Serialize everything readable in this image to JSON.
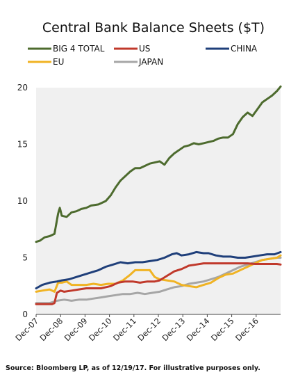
{
  "chart_data": {
    "type": "line",
    "title": "Central Bank Balance Sheets ($T)",
    "xlabel": "",
    "ylabel": "",
    "x_start": "Dec-07",
    "x_end": "Dec-17",
    "x_tick_labels": [
      "Dec-07",
      "Dec-08",
      "Dec-09",
      "Dec-10",
      "Dec-11",
      "Dec-12",
      "Dec-13",
      "Dec-14",
      "Dec-15",
      "Dec-16"
    ],
    "ylim": [
      0,
      20
    ],
    "y_ticks": [
      0,
      5,
      10,
      15,
      20
    ],
    "grid": "dense vertical hatching in plot area",
    "legend_placement": "top",
    "series": [
      {
        "name": "BIG 4 TOTAL",
        "color": "#4d6b2e",
        "points": [
          [
            2007.95,
            6.4
          ],
          [
            2008.1,
            6.5
          ],
          [
            2008.3,
            6.8
          ],
          [
            2008.5,
            6.9
          ],
          [
            2008.7,
            7.1
          ],
          [
            2008.85,
            8.9
          ],
          [
            2008.92,
            9.4
          ],
          [
            2009.0,
            8.7
          ],
          [
            2009.2,
            8.6
          ],
          [
            2009.4,
            9.0
          ],
          [
            2009.6,
            9.1
          ],
          [
            2009.8,
            9.3
          ],
          [
            2010.0,
            9.4
          ],
          [
            2010.2,
            9.6
          ],
          [
            2010.5,
            9.7
          ],
          [
            2010.8,
            10.0
          ],
          [
            2011.0,
            10.5
          ],
          [
            2011.2,
            11.2
          ],
          [
            2011.4,
            11.8
          ],
          [
            2011.6,
            12.2
          ],
          [
            2011.8,
            12.6
          ],
          [
            2012.0,
            12.9
          ],
          [
            2012.2,
            12.9
          ],
          [
            2012.4,
            13.1
          ],
          [
            2012.6,
            13.3
          ],
          [
            2012.8,
            13.4
          ],
          [
            2013.0,
            13.5
          ],
          [
            2013.2,
            13.2
          ],
          [
            2013.4,
            13.8
          ],
          [
            2013.6,
            14.2
          ],
          [
            2013.8,
            14.5
          ],
          [
            2014.0,
            14.8
          ],
          [
            2014.2,
            14.9
          ],
          [
            2014.4,
            15.1
          ],
          [
            2014.6,
            15.0
          ],
          [
            2014.8,
            15.1
          ],
          [
            2015.0,
            15.2
          ],
          [
            2015.2,
            15.3
          ],
          [
            2015.4,
            15.5
          ],
          [
            2015.6,
            15.6
          ],
          [
            2015.8,
            15.6
          ],
          [
            2016.0,
            15.9
          ],
          [
            2016.2,
            16.8
          ],
          [
            2016.4,
            17.4
          ],
          [
            2016.6,
            17.8
          ],
          [
            2016.8,
            17.5
          ],
          [
            2017.0,
            18.1
          ],
          [
            2017.2,
            18.7
          ],
          [
            2017.4,
            19.0
          ],
          [
            2017.6,
            19.3
          ],
          [
            2017.8,
            19.7
          ],
          [
            2017.95,
            20.1
          ]
        ]
      },
      {
        "name": "US",
        "color": "#c0392b",
        "points": [
          [
            2007.95,
            0.9
          ],
          [
            2008.3,
            0.9
          ],
          [
            2008.6,
            0.9
          ],
          [
            2008.7,
            1.0
          ],
          [
            2008.8,
            1.9
          ],
          [
            2008.95,
            2.1
          ],
          [
            2009.1,
            2.0
          ],
          [
            2009.4,
            2.1
          ],
          [
            2009.7,
            2.2
          ],
          [
            2010.0,
            2.3
          ],
          [
            2010.3,
            2.3
          ],
          [
            2010.6,
            2.3
          ],
          [
            2010.8,
            2.4
          ],
          [
            2011.0,
            2.5
          ],
          [
            2011.3,
            2.8
          ],
          [
            2011.6,
            2.9
          ],
          [
            2011.9,
            2.9
          ],
          [
            2012.2,
            2.8
          ],
          [
            2012.5,
            2.9
          ],
          [
            2012.8,
            2.9
          ],
          [
            2013.0,
            3.0
          ],
          [
            2013.3,
            3.4
          ],
          [
            2013.6,
            3.8
          ],
          [
            2013.9,
            4.0
          ],
          [
            2014.2,
            4.3
          ],
          [
            2014.5,
            4.4
          ],
          [
            2014.8,
            4.5
          ],
          [
            2015.1,
            4.5
          ],
          [
            2015.4,
            4.5
          ],
          [
            2015.7,
            4.5
          ],
          [
            2016.0,
            4.5
          ],
          [
            2016.3,
            4.5
          ],
          [
            2016.6,
            4.5
          ],
          [
            2016.9,
            4.45
          ],
          [
            2017.2,
            4.45
          ],
          [
            2017.5,
            4.45
          ],
          [
            2017.8,
            4.45
          ],
          [
            2017.95,
            4.4
          ]
        ]
      },
      {
        "name": "CHINA",
        "color": "#1f3f7a",
        "points": [
          [
            2007.95,
            2.3
          ],
          [
            2008.2,
            2.6
          ],
          [
            2008.5,
            2.8
          ],
          [
            2008.8,
            2.9
          ],
          [
            2009.0,
            3.0
          ],
          [
            2009.3,
            3.1
          ],
          [
            2009.6,
            3.3
          ],
          [
            2009.9,
            3.5
          ],
          [
            2010.2,
            3.7
          ],
          [
            2010.5,
            3.9
          ],
          [
            2010.8,
            4.2
          ],
          [
            2011.1,
            4.4
          ],
          [
            2011.4,
            4.6
          ],
          [
            2011.7,
            4.5
          ],
          [
            2012.0,
            4.6
          ],
          [
            2012.3,
            4.6
          ],
          [
            2012.6,
            4.7
          ],
          [
            2012.9,
            4.8
          ],
          [
            2013.2,
            5.0
          ],
          [
            2013.5,
            5.3
          ],
          [
            2013.7,
            5.4
          ],
          [
            2013.9,
            5.2
          ],
          [
            2014.2,
            5.3
          ],
          [
            2014.5,
            5.5
          ],
          [
            2014.8,
            5.4
          ],
          [
            2015.0,
            5.4
          ],
          [
            2015.3,
            5.2
          ],
          [
            2015.6,
            5.1
          ],
          [
            2015.9,
            5.1
          ],
          [
            2016.2,
            5.0
          ],
          [
            2016.5,
            5.0
          ],
          [
            2016.8,
            5.1
          ],
          [
            2017.1,
            5.2
          ],
          [
            2017.4,
            5.3
          ],
          [
            2017.7,
            5.3
          ],
          [
            2017.95,
            5.5
          ]
        ]
      },
      {
        "name": "EU",
        "color": "#f0b323",
        "points": [
          [
            2007.95,
            2.0
          ],
          [
            2008.2,
            2.1
          ],
          [
            2008.5,
            2.2
          ],
          [
            2008.7,
            2.0
          ],
          [
            2008.85,
            2.8
          ],
          [
            2009.0,
            2.8
          ],
          [
            2009.2,
            2.9
          ],
          [
            2009.4,
            2.6
          ],
          [
            2009.7,
            2.6
          ],
          [
            2010.0,
            2.6
          ],
          [
            2010.3,
            2.7
          ],
          [
            2010.6,
            2.6
          ],
          [
            2010.9,
            2.7
          ],
          [
            2011.2,
            2.7
          ],
          [
            2011.5,
            3.0
          ],
          [
            2011.8,
            3.5
          ],
          [
            2012.0,
            3.9
          ],
          [
            2012.3,
            3.9
          ],
          [
            2012.6,
            3.9
          ],
          [
            2012.8,
            3.3
          ],
          [
            2013.0,
            3.1
          ],
          [
            2013.3,
            3.0
          ],
          [
            2013.6,
            2.9
          ],
          [
            2013.9,
            2.6
          ],
          [
            2014.2,
            2.5
          ],
          [
            2014.5,
            2.4
          ],
          [
            2014.8,
            2.6
          ],
          [
            2015.1,
            2.8
          ],
          [
            2015.4,
            3.2
          ],
          [
            2015.7,
            3.5
          ],
          [
            2016.0,
            3.6
          ],
          [
            2016.3,
            3.9
          ],
          [
            2016.6,
            4.2
          ],
          [
            2016.9,
            4.5
          ],
          [
            2017.2,
            4.8
          ],
          [
            2017.5,
            4.9
          ],
          [
            2017.8,
            5.0
          ],
          [
            2017.95,
            5.2
          ]
        ]
      },
      {
        "name": "JAPAN",
        "color": "#a6a6a6",
        "points": [
          [
            2007.95,
            1.0
          ],
          [
            2008.2,
            1.0
          ],
          [
            2008.5,
            1.0
          ],
          [
            2008.8,
            1.2
          ],
          [
            2009.1,
            1.3
          ],
          [
            2009.4,
            1.2
          ],
          [
            2009.7,
            1.3
          ],
          [
            2010.0,
            1.3
          ],
          [
            2010.3,
            1.4
          ],
          [
            2010.6,
            1.5
          ],
          [
            2010.9,
            1.6
          ],
          [
            2011.2,
            1.7
          ],
          [
            2011.5,
            1.8
          ],
          [
            2011.8,
            1.8
          ],
          [
            2012.1,
            1.9
          ],
          [
            2012.4,
            1.8
          ],
          [
            2012.7,
            1.9
          ],
          [
            2013.0,
            2.0
          ],
          [
            2013.3,
            2.2
          ],
          [
            2013.6,
            2.4
          ],
          [
            2013.9,
            2.5
          ],
          [
            2014.2,
            2.7
          ],
          [
            2014.5,
            2.8
          ],
          [
            2014.8,
            2.9
          ],
          [
            2015.1,
            3.1
          ],
          [
            2015.4,
            3.3
          ],
          [
            2015.7,
            3.6
          ],
          [
            2016.0,
            3.9
          ],
          [
            2016.3,
            4.2
          ],
          [
            2016.6,
            4.4
          ],
          [
            2016.9,
            4.6
          ],
          [
            2017.2,
            4.8
          ],
          [
            2017.5,
            4.9
          ],
          [
            2017.8,
            5.0
          ],
          [
            2017.95,
            5.0
          ]
        ]
      }
    ]
  },
  "source_note": "Source: Bloomberg LP, as of 12/19/17. For illustrative purposes only."
}
